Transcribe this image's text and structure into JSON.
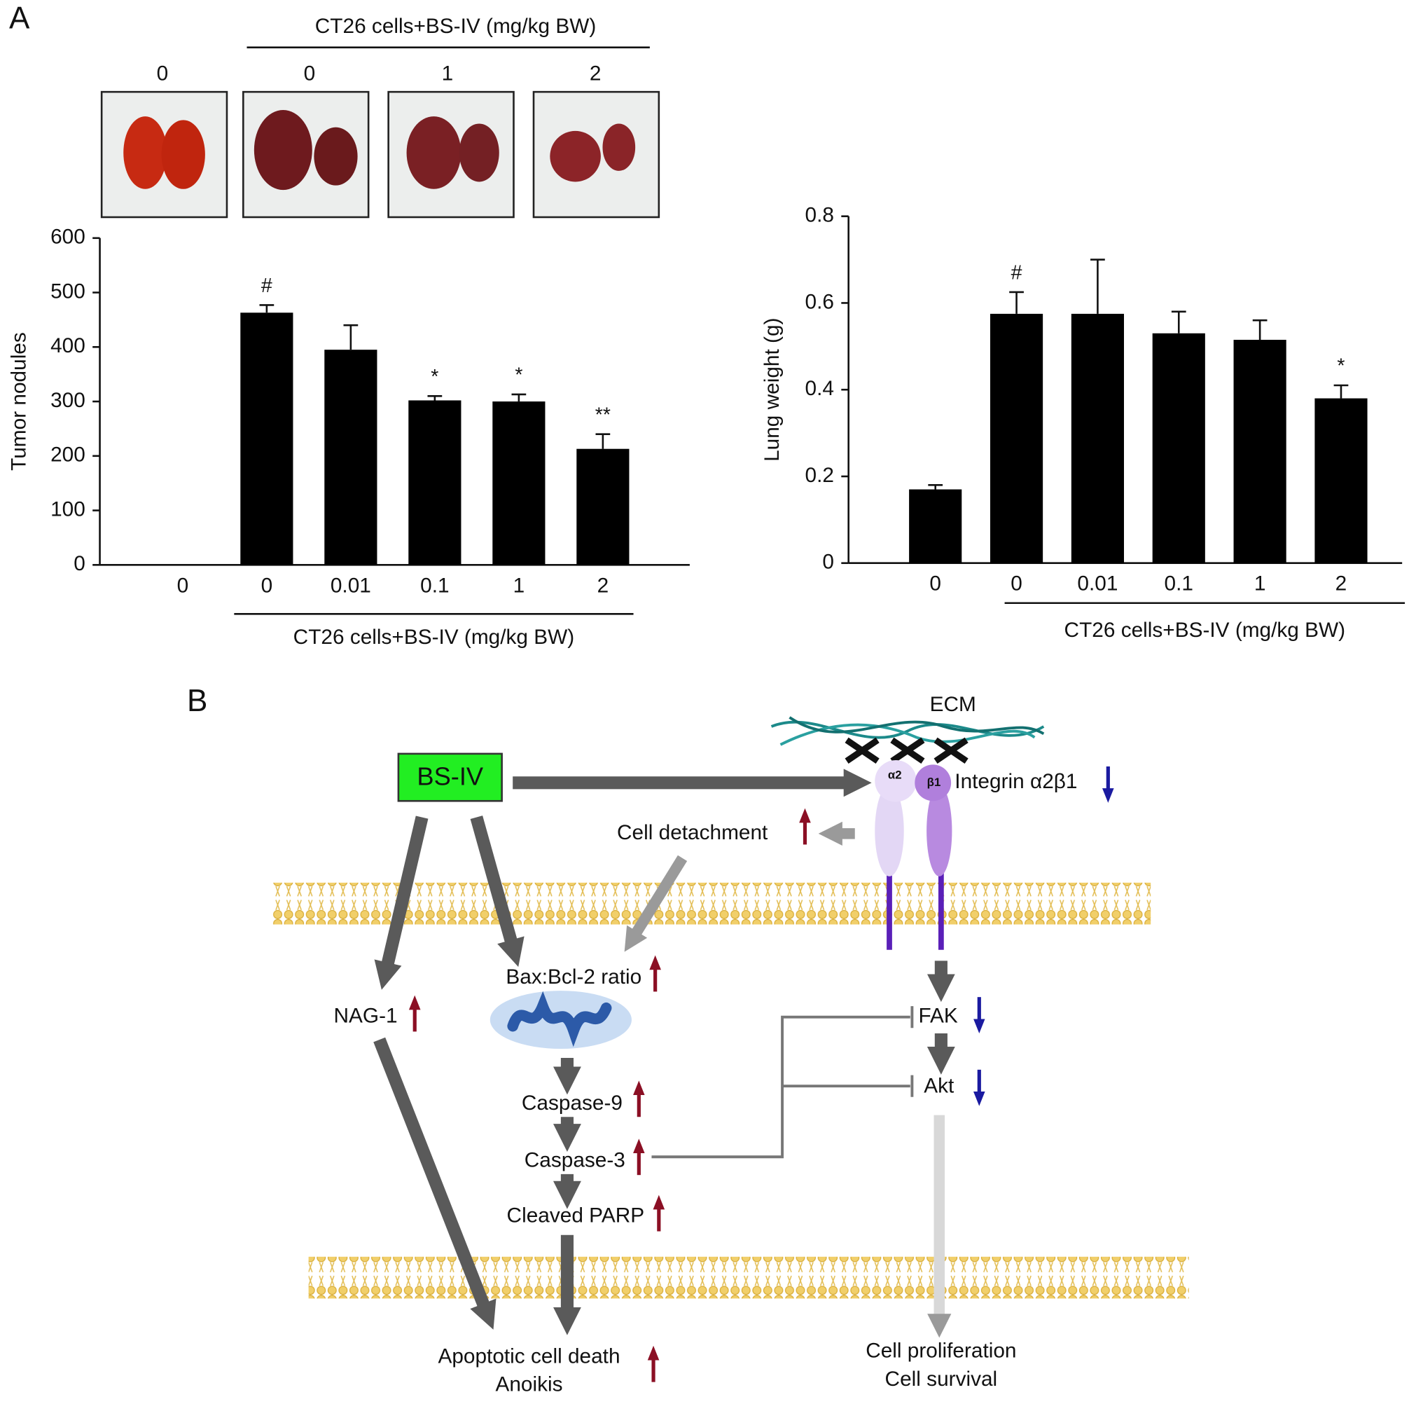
{
  "panel_labels": [
    "A",
    "B"
  ],
  "photos": {
    "header": "CT26 cells+BS-IV (mg/kg BW)",
    "labels": [
      "0",
      "0",
      "1",
      "2"
    ]
  },
  "chart_data": [
    {
      "type": "bar",
      "ylabel": "Tumor nodules",
      "xlabel": "CT26 cells+BS-IV (mg/kg BW)",
      "categories": [
        "0",
        "0",
        "0.01",
        "0.1",
        "1",
        "2"
      ],
      "values": [
        0,
        463,
        395,
        302,
        300,
        213
      ],
      "errors": [
        null,
        14,
        45,
        8,
        13,
        27
      ],
      "annotations": [
        null,
        "#",
        null,
        "*",
        "*",
        "**"
      ],
      "color": "#000000",
      "ylim": [
        0,
        600
      ],
      "yticks": [
        0,
        100,
        200,
        300,
        400,
        500,
        600
      ]
    },
    {
      "type": "bar",
      "ylabel": "Lung weight (g)",
      "xlabel": "CT26 cells+BS-IV (mg/kg BW)",
      "categories": [
        "0",
        "0",
        "0.01",
        "0.1",
        "1",
        "2"
      ],
      "values": [
        0.17,
        0.575,
        0.575,
        0.53,
        0.515,
        0.38
      ],
      "errors": [
        0.01,
        0.05,
        0.125,
        0.05,
        0.045,
        0.03
      ],
      "annotations": [
        null,
        "#",
        null,
        null,
        null,
        "*"
      ],
      "color": "#000000",
      "ylim": [
        0,
        0.8
      ],
      "yticks": [
        0,
        0.2,
        0.4,
        0.6,
        0.8
      ]
    }
  ],
  "diagram": {
    "ecm": "ECM",
    "drug": "BS-IV",
    "integrin": "Integrin α2β1",
    "alpha": "α2",
    "beta": "β1",
    "detachment": "Cell detachment",
    "bax": "Bax:Bcl-2 ratio",
    "nag": "NAG-1",
    "fak": "FAK",
    "akt": "Akt",
    "casp9": "Caspase-9",
    "casp3": "Caspase-3",
    "parp": "Cleaved PARP",
    "death": [
      "Apoptotic cell death",
      "Anoikis"
    ],
    "survival": [
      "Cell proliferation",
      "Cell survival"
    ]
  }
}
